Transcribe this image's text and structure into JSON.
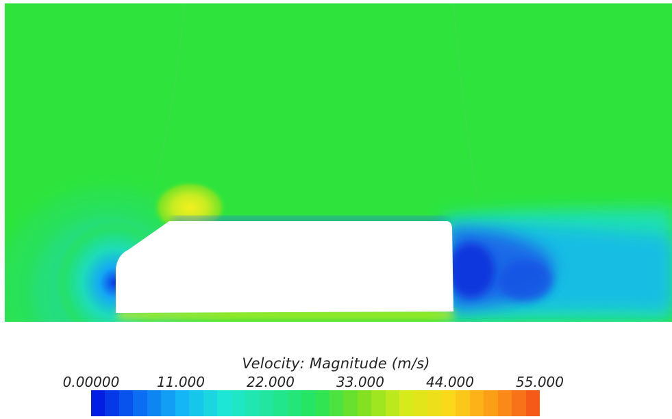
{
  "legend": {
    "title": "Velocity: Magnitude (m/s)",
    "ticks": [
      "0.00000",
      "11.000",
      "22.000",
      "33.000",
      "44.000",
      "55.000"
    ],
    "range": [
      0,
      55
    ],
    "segments": 32,
    "colormap": [
      "#0011e0",
      "#0a66f0",
      "#14b4f6",
      "#1ee8d6",
      "#22e69a",
      "#24e55a",
      "#7ae022",
      "#d6ec1c",
      "#fbd81a",
      "#fb9a16",
      "#f54e1a"
    ]
  },
  "field": {
    "freestream_color": "#2ee43c",
    "body_color": "#ffffff"
  }
}
